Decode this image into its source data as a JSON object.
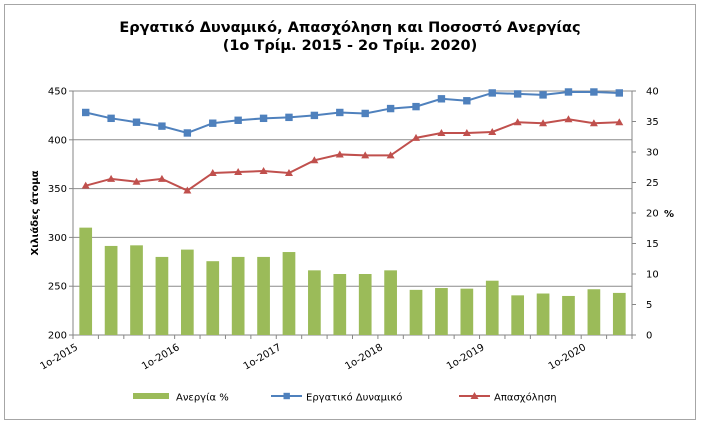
{
  "chart_data": {
    "type": "bar",
    "title_line1": "Εργατικό Δυναμικό, Απασχόληση και Ποσοστό Ανεργίας",
    "title_line2": "(1ο Τρίμ. 2015 - 2ο Τρίμ. 2020)",
    "ylabel_left": "Χιλιάδες άτομα",
    "ylabel_right": "%",
    "ylim_left": [
      200,
      450
    ],
    "yticks_left": [
      200,
      250,
      300,
      350,
      400,
      450
    ],
    "ylim_right": [
      0,
      40
    ],
    "yticks_right": [
      0,
      5,
      10,
      15,
      20,
      25,
      30,
      35,
      40
    ],
    "x_tick_labels": [
      {
        "index": 0,
        "label": "1ο-2015"
      },
      {
        "index": 4,
        "label": "1ο-2016"
      },
      {
        "index": 8,
        "label": "1ο-2017"
      },
      {
        "index": 12,
        "label": "1ο-2018"
      },
      {
        "index": 16,
        "label": "1ο-2019"
      },
      {
        "index": 20,
        "label": "1ο-2020"
      }
    ],
    "grid": "horizontal",
    "legend_position": "bottom",
    "series": [
      {
        "name": "Ανεργία %",
        "type": "bar",
        "axis": "right",
        "color": "#9bbb59",
        "values": [
          17.6,
          14.6,
          14.7,
          12.8,
          14.0,
          12.1,
          12.8,
          12.8,
          13.6,
          10.6,
          10.0,
          10.0,
          10.6,
          7.4,
          7.7,
          7.6,
          8.9,
          6.5,
          6.8,
          6.4,
          7.5,
          6.9
        ]
      },
      {
        "name": "Εργατικό Δυναμικό",
        "type": "line",
        "axis": "left",
        "color": "#4f81bd",
        "marker": "square",
        "values": [
          428,
          422,
          418,
          414,
          407,
          417,
          420,
          422,
          423,
          425,
          428,
          427,
          432,
          434,
          442,
          440,
          448,
          447,
          446,
          449,
          449,
          448
        ]
      },
      {
        "name": "Απασχόληση",
        "type": "line",
        "axis": "left",
        "color": "#c0504d",
        "marker": "triangle",
        "values": [
          353,
          360,
          357,
          360,
          348,
          366,
          367,
          368,
          366,
          379,
          385,
          384,
          384,
          402,
          407,
          407,
          408,
          418,
          417,
          421,
          417,
          418
        ]
      }
    ]
  }
}
